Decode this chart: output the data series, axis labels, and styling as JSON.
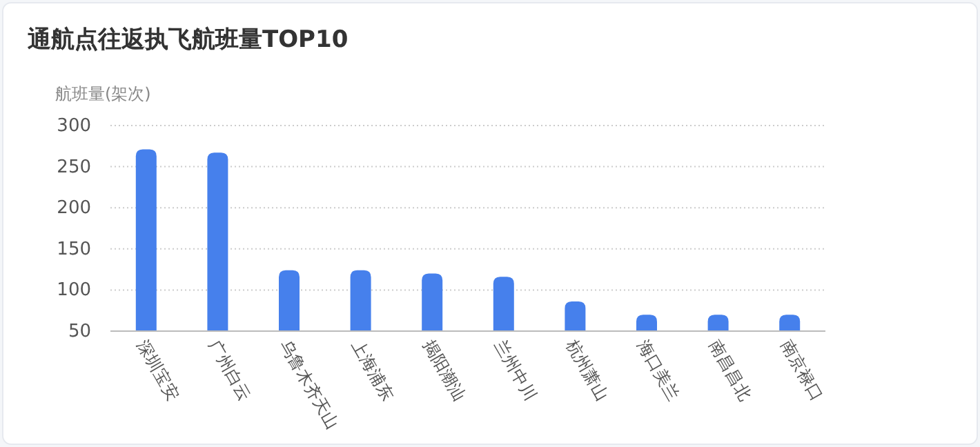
{
  "chart_data": {
    "type": "bar",
    "title": "通航点往返执飞航班量TOP10",
    "ylabel": "航班量(架次)",
    "categories": [
      "深圳宝安",
      "广州白云",
      "乌鲁木齐天山",
      "上海浦东",
      "揭阳潮汕",
      "兰州中川",
      "杭州萧山",
      "海口美兰",
      "南昌昌北",
      "南京禄口"
    ],
    "values": [
      271,
      267,
      124,
      124,
      120,
      116,
      86,
      70,
      70,
      70
    ],
    "color": "#4680ec",
    "ylim": [
      50,
      300
    ],
    "yticks": [
      50,
      100,
      150,
      200,
      250,
      300
    ],
    "grid": "y"
  }
}
